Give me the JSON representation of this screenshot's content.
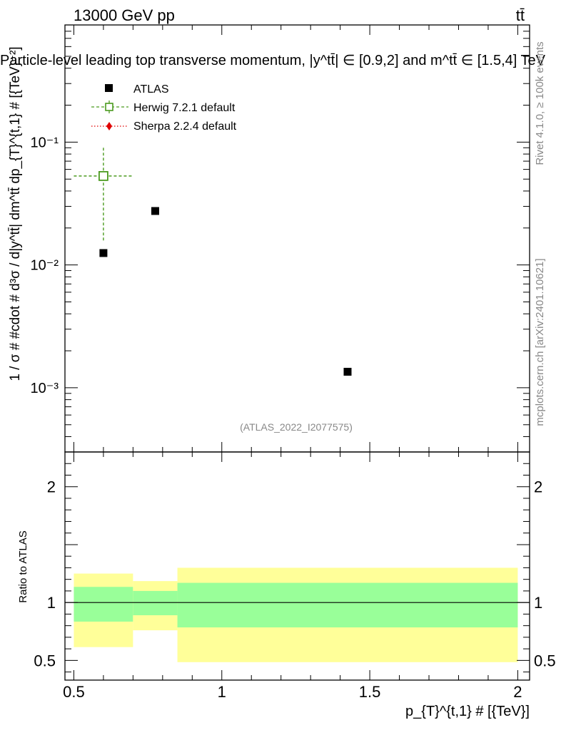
{
  "header": {
    "energy_label": "13000 GeV pp",
    "process_label": "tt̄",
    "plot_title": "Particle-level leading top transverse momentum, |y^tt̄| ∈ [0.9,2] and m^tt̄ ∈ [1.5,4] TeV"
  },
  "side_labels": {
    "rivet": "Rivet 4.1.0, ≥ 100k events",
    "mcplots": "mcplots.cern.ch [arXiv:2401.10621]"
  },
  "watermark": "(ATLAS_2022_I2077575)",
  "legend": {
    "atlas": "ATLAS",
    "herwig": "Herwig 7.2.1 default",
    "sherpa": "Sherpa 2.2.4 default"
  },
  "colors": {
    "herwig": "#4a9a1e",
    "sherpa": "#e00000",
    "band_outer": "#ffff99",
    "band_inner": "#99ff99"
  },
  "main_ylabel": "1 / σ # #cdot # d³σ / d|y^tt̄| dm^tt̄ dp_{T}^{t,1} # [{TeV}⁻²]",
  "ratio_ylabel": "Ratio to ATLAS",
  "xlabel": "p_{T}^{t,1} # [{TeV}]",
  "main_ticks": [
    {
      "value": 0.1,
      "label": "10⁻¹"
    },
    {
      "value": 0.01,
      "label": "10⁻²"
    },
    {
      "value": 0.001,
      "label": "10⁻³"
    }
  ],
  "ratio_ticks": [
    {
      "value": 2,
      "label": "2"
    },
    {
      "value": 1,
      "label": "1"
    },
    {
      "value": 0.5,
      "label": "0.5"
    }
  ],
  "x_ticks": [
    {
      "value": 0.5,
      "label": "0.5"
    },
    {
      "value": 1,
      "label": "1"
    },
    {
      "value": 1.5,
      "label": "1.5"
    },
    {
      "value": 2,
      "label": "2"
    }
  ],
  "chart_data": {
    "type": "scatter",
    "title": "Particle-level leading top transverse momentum, |y^tt̄| ∈ [0.9,2] and m^tt̄ ∈ [1.5,4] TeV",
    "xlabel": "p_{T}^{t,1} # [{TeV}]",
    "ylabel": "1 / σ # #cdot # d³σ / d|y^tt̄| dm^tt̄ dp_{T}^{t,1} # [{TeV}⁻²]",
    "xlim": [
      0.47,
      2.04
    ],
    "ylim": [
      0.0003,
      0.9
    ],
    "yscale": "log",
    "series": [
      {
        "name": "ATLAS",
        "points": [
          {
            "x": 0.6,
            "y": 0.0125
          },
          {
            "x": 0.775,
            "y": 0.0275
          },
          {
            "x": 1.425,
            "y": 0.00135
          }
        ]
      },
      {
        "name": "Herwig 7.2.1 default",
        "points": [
          {
            "x": 0.6,
            "y": 0.053,
            "xlow": 0.5,
            "xhigh": 0.7,
            "ylow": 0.0155,
            "yhigh": 0.09
          }
        ]
      },
      {
        "name": "Sherpa 2.2.4 default",
        "points": []
      }
    ],
    "ratio": {
      "ylabel": "Ratio to ATLAS",
      "ylim": [
        0.33,
        2.3
      ],
      "reference": 1,
      "bands": [
        {
          "xlow": 0.5,
          "xhigh": 0.7,
          "outer": [
            0.615,
            1.25
          ],
          "inner": [
            0.835,
            1.135
          ]
        },
        {
          "xlow": 0.7,
          "xhigh": 0.85,
          "outer": [
            0.76,
            1.185
          ],
          "inner": [
            0.89,
            1.1
          ]
        },
        {
          "xlow": 0.85,
          "xhigh": 2.0,
          "outer": [
            0.485,
            1.3
          ],
          "inner": [
            0.785,
            1.17
          ]
        }
      ]
    }
  }
}
